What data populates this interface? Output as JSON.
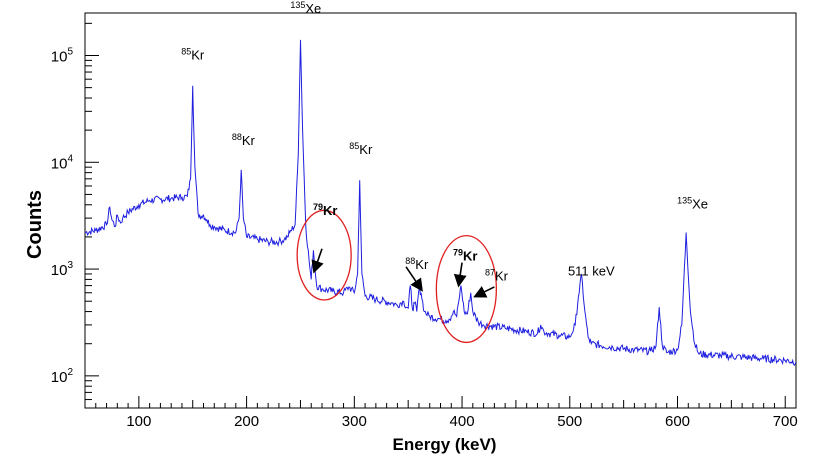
{
  "chart_data": {
    "type": "line",
    "title": "",
    "xlabel": "Energy (keV)",
    "ylabel": "Counts",
    "xlim": [
      50,
      710
    ],
    "ylim": [
      50,
      250000
    ],
    "yscale": "log",
    "x_ticks": [
      100,
      200,
      300,
      400,
      500,
      600,
      700
    ],
    "x_tick_labels": [
      "100",
      "200",
      "300",
      "400",
      "500",
      "600",
      "700"
    ],
    "y_ticks": [
      100,
      1000,
      10000,
      100000
    ],
    "y_tick_labels": [
      {
        "base": "10",
        "exp": "2"
      },
      {
        "base": "10",
        "exp": "3"
      },
      {
        "base": "10",
        "exp": "4"
      },
      {
        "base": "10",
        "exp": "5"
      }
    ],
    "series": [
      {
        "name": "spectrum",
        "color": "#1f1fe0",
        "x": [
          50,
          60,
          70,
          73,
          75,
          78,
          80,
          83,
          85,
          90,
          100,
          110,
          120,
          130,
          140,
          145,
          148,
          150,
          152,
          155,
          158,
          160,
          163,
          166,
          170,
          180,
          190,
          193,
          195,
          197,
          200,
          210,
          220,
          230,
          235,
          238,
          240,
          245,
          248,
          250,
          252,
          255,
          258,
          260,
          262,
          265,
          270,
          280,
          290,
          295,
          300,
          303,
          305,
          307,
          310,
          320,
          335,
          340,
          345,
          350,
          352,
          354,
          356,
          358,
          360,
          362,
          365,
          370,
          380,
          385,
          388,
          390,
          392,
          395,
          397,
          399,
          402,
          405,
          408,
          410,
          415,
          420,
          440,
          460,
          470,
          473,
          476,
          480,
          490,
          500,
          505,
          508,
          511,
          514,
          517,
          520,
          540,
          560,
          575,
          580,
          583,
          586,
          590,
          600,
          604,
          608,
          612,
          616,
          620,
          640,
          660,
          680,
          700,
          710
        ],
        "y": [
          2200,
          2300,
          2600,
          3800,
          2900,
          2500,
          3200,
          2700,
          3000,
          3400,
          4000,
          4400,
          4500,
          4600,
          4700,
          4800,
          7000,
          52000,
          9000,
          3300,
          3100,
          3200,
          2900,
          2600,
          2500,
          2300,
          2200,
          3000,
          8500,
          3000,
          2000,
          1900,
          1800,
          1800,
          1900,
          2000,
          2200,
          2600,
          12000,
          140000,
          20000,
          2500,
          1200,
          800,
          1500,
          700,
          650,
          620,
          600,
          680,
          600,
          900,
          6800,
          900,
          560,
          520,
          480,
          460,
          500,
          430,
          700,
          420,
          480,
          400,
          650,
          600,
          400,
          360,
          340,
          330,
          340,
          360,
          400,
          360,
          500,
          700,
          400,
          380,
          600,
          400,
          320,
          300,
          280,
          260,
          250,
          300,
          260,
          250,
          240,
          230,
          300,
          550,
          880,
          400,
          230,
          200,
          185,
          175,
          170,
          190,
          440,
          190,
          165,
          175,
          300,
          2200,
          400,
          200,
          160,
          155,
          150,
          145,
          140,
          135
        ]
      }
    ],
    "annotations": [
      {
        "type": "label",
        "x": 150,
        "y": 92000,
        "sup": "85",
        "text": "Kr",
        "bold": false
      },
      {
        "type": "label",
        "x": 197,
        "y": 14500,
        "sup": "88",
        "text": "Kr",
        "bold": false
      },
      {
        "type": "label",
        "x": 255,
        "y": 250000,
        "sup": "135",
        "text": "Xe",
        "bold": false
      },
      {
        "type": "label",
        "x": 306,
        "y": 12000,
        "sup": "85",
        "text": "Kr",
        "bold": false
      },
      {
        "type": "label",
        "x": 273,
        "y": 3200,
        "sup": "79",
        "text": "Kr",
        "bold": true
      },
      {
        "type": "label",
        "x": 358,
        "y": 1000,
        "sup": "88",
        "text": "Kr",
        "bold": false
      },
      {
        "type": "label",
        "x": 403,
        "y": 1200,
        "sup": "79",
        "text": "Kr",
        "bold": true
      },
      {
        "type": "label",
        "x": 432,
        "y": 780,
        "sup": "87",
        "text": "Kr",
        "bold": false
      },
      {
        "type": "label",
        "x": 520,
        "y": 870,
        "sup": "",
        "text": "511 keV",
        "bold": false
      },
      {
        "type": "label",
        "x": 614,
        "y": 3700,
        "sup": "135",
        "text": "Xe",
        "bold": false
      }
    ],
    "arrows": [
      {
        "from": [
          270,
          1550
        ],
        "to": [
          263,
          970
        ]
      },
      {
        "from": [
          348,
          1050
        ],
        "to": [
          362,
          650
        ]
      },
      {
        "from": [
          400,
          1150
        ],
        "to": [
          397,
          720
        ]
      },
      {
        "from": [
          430,
          680
        ],
        "to": [
          413,
          560
        ]
      }
    ],
    "circles": [
      {
        "cx": 272,
        "cy": 1350,
        "rx": 27,
        "ry_log_decades": 0.42
      },
      {
        "cx": 404,
        "cy": 650,
        "rx": 30,
        "ry_log_decades": 0.5
      }
    ],
    "highlight_color": "#e02020",
    "grid": false,
    "legend": "none"
  }
}
